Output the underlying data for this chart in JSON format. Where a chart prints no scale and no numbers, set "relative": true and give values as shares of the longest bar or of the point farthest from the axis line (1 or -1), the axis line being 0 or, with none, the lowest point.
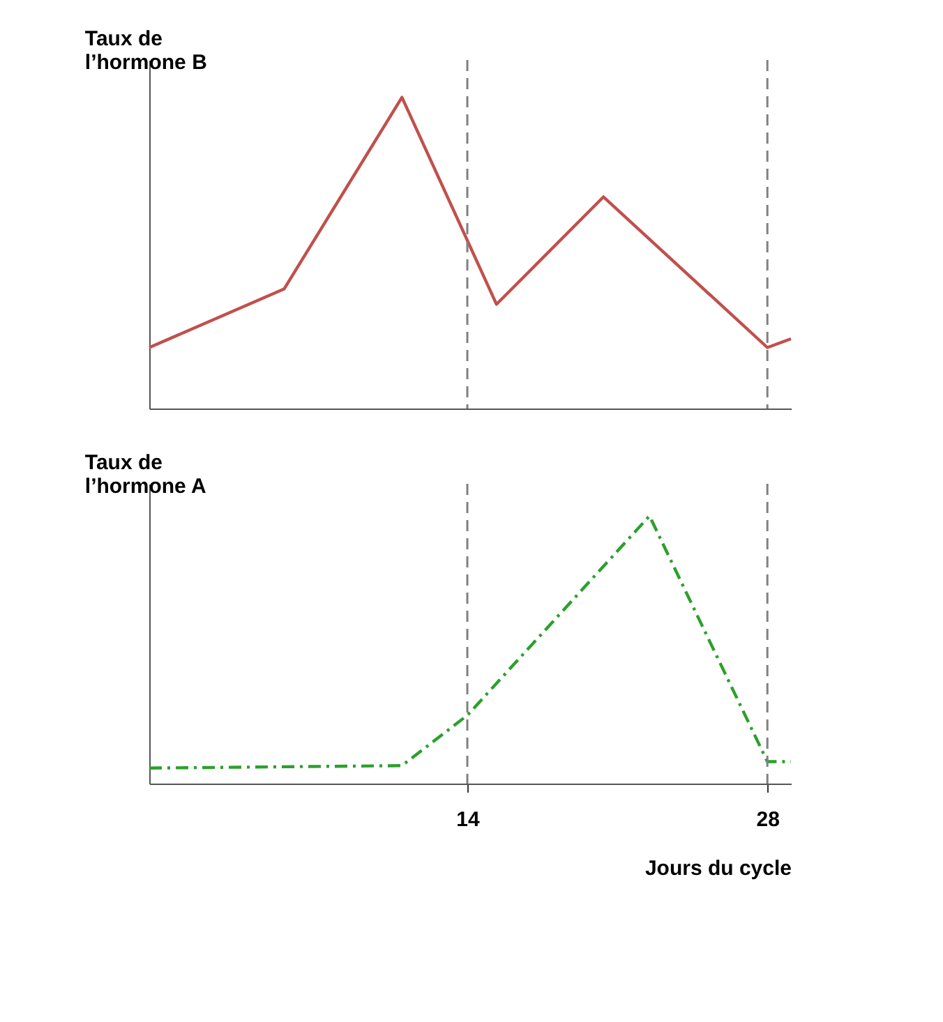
{
  "chart_data": [
    {
      "type": "line",
      "ylabel": "Taux de l’hormone B",
      "relative": true,
      "xlim": [
        -0.84,
        29.1
      ],
      "tick_labels": false,
      "grid": false,
      "legend": false,
      "series": [
        {
          "color": "#c0504d",
          "line_style": "solid",
          "x": [
            -0.84,
            5.45,
            10.95,
            15.36,
            20.35,
            28,
            29.1
          ],
          "values": [
            0.196,
            0.384,
            1,
            0.335,
            0.68,
            0.196,
            0.224
          ]
        }
      ],
      "ref_lines": [
        {
          "axis": "x",
          "value": 14,
          "line_style": "dashed",
          "color": "#808080"
        },
        {
          "axis": "x",
          "value": 28,
          "line_style": "dashed",
          "color": "#808080"
        }
      ]
    },
    {
      "type": "line",
      "ylabel": "Taux de l’hormone A",
      "xlabel": "Jours du cycle",
      "relative": true,
      "xlim": [
        -0.84,
        29.1
      ],
      "xticks": [
        14,
        28
      ],
      "tick_labels": "x",
      "grid": false,
      "legend": false,
      "series": [
        {
          "color": "#2ca02c",
          "line_style": "dashed",
          "x": [
            -0.84,
            10.95,
            14,
            22.5,
            28,
            29.1
          ],
          "values": [
            0.058,
            0.067,
            0.255,
            1,
            0.082,
            0.082
          ]
        }
      ],
      "ref_lines": [
        {
          "axis": "x",
          "value": 14,
          "line_style": "dashed",
          "color": "#808080"
        },
        {
          "axis": "x",
          "value": 28,
          "line_style": "dashed",
          "color": "#808080"
        }
      ]
    }
  ]
}
